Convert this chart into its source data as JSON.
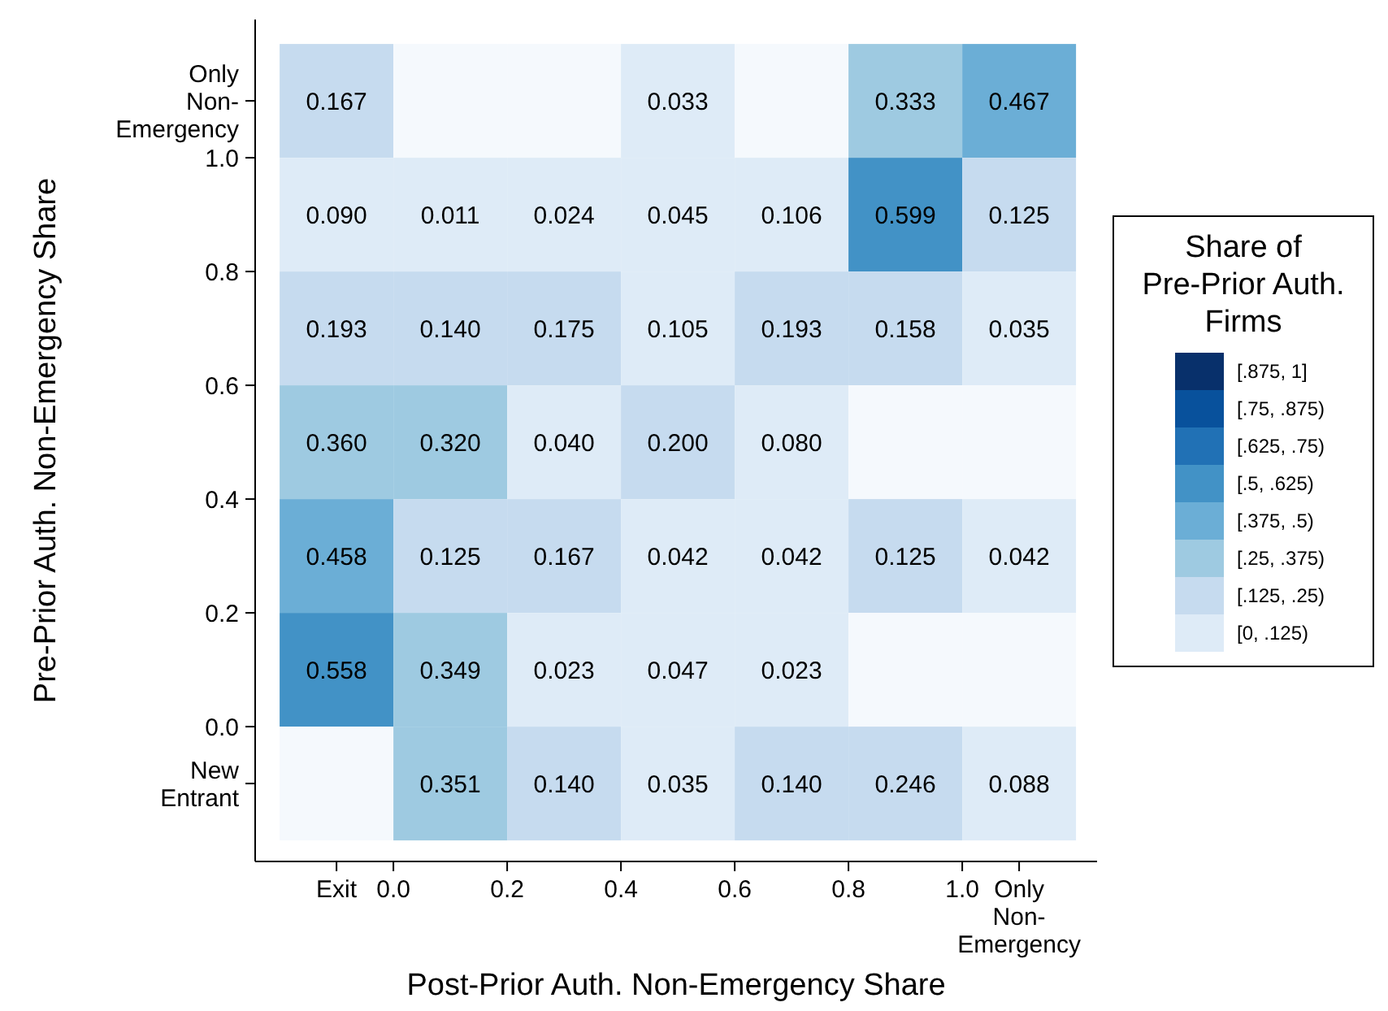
{
  "chart_data": {
    "type": "heatmap",
    "xlabel": "Post-Prior Auth. Non-Emergency Share",
    "ylabel": "Pre-Prior Auth. Non-Emergency Share",
    "legend_title": "Share of Pre-Prior Auth. Firms",
    "x": [
      -0.1,
      0.1,
      0.3,
      0.5,
      0.7,
      0.9,
      1.1
    ],
    "y": [
      1.1,
      0.9,
      0.7,
      0.5,
      0.3,
      0.1,
      -0.1
    ],
    "xlim": [
      -0.243,
      1.237
    ],
    "xticks": [
      {
        "value": -0.1,
        "label": "Exit"
      },
      {
        "value": 0,
        "label": "0.0"
      },
      0.2,
      0.4,
      0.6,
      0.8,
      {
        "value": 1,
        "label": "1.0"
      },
      {
        "value": 1.1,
        "label": "Only Non-Emergency"
      }
    ],
    "ylim": [
      -0.237,
      1.243
    ],
    "yticks": [
      {
        "value": -0.1,
        "label": "New Entrant"
      },
      {
        "value": 0,
        "label": "0.0"
      },
      0.2,
      0.4,
      0.6,
      0.8,
      {
        "value": 1,
        "label": "1.0"
      },
      {
        "value": 1.1,
        "label": "Only Non-Emergency"
      }
    ],
    "cells": [
      [
        0.167,
        null,
        null,
        0.033,
        null,
        0.333,
        0.467
      ],
      [
        0.09,
        0.011,
        0.024,
        0.045,
        0.106,
        0.599,
        0.125
      ],
      [
        0.193,
        0.14,
        0.175,
        0.105,
        0.193,
        0.158,
        0.035
      ],
      [
        0.36,
        0.32,
        0.04,
        0.2,
        0.08,
        null,
        null
      ],
      [
        0.458,
        0.125,
        0.167,
        0.042,
        0.042,
        0.125,
        0.042
      ],
      [
        0.558,
        0.349,
        0.023,
        0.047,
        0.023,
        null,
        null
      ],
      [
        null,
        0.351,
        0.14,
        0.035,
        0.14,
        0.246,
        0.088
      ]
    ],
    "cell_labels": [
      [
        "0.167",
        null,
        null,
        "0.033",
        null,
        "0.333",
        "0.467"
      ],
      [
        "0.090",
        "0.011",
        "0.024",
        "0.045",
        "0.106",
        "0.599",
        "0.125"
      ],
      [
        "0.193",
        "0.140",
        "0.175",
        "0.105",
        "0.193",
        "0.158",
        "0.035"
      ],
      [
        "0.360",
        "0.320",
        "0.040",
        "0.200",
        "0.080",
        null,
        null
      ],
      [
        "0.458",
        "0.125",
        "0.167",
        "0.042",
        "0.042",
        "0.125",
        "0.042"
      ],
      [
        "0.558",
        "0.349",
        "0.023",
        "0.047",
        "0.023",
        null,
        null
      ],
      [
        null,
        "0.351",
        "0.140",
        "0.035",
        "0.140",
        "0.246",
        "0.088"
      ]
    ],
    "clim": [
      0,
      1
    ],
    "cticks": [
      {
        "value": 0.0625,
        "label": "[0, .125)"
      },
      {
        "value": 0.1875,
        "label": "[.125, .25)"
      },
      {
        "value": 0.3125,
        "label": "[.25, .375)"
      },
      {
        "value": 0.4375,
        "label": "[.375, .5)"
      },
      {
        "value": 0.5625,
        "label": "[.5, .625)"
      },
      {
        "value": 0.6875,
        "label": "[.625, .75)"
      },
      {
        "value": 0.8125,
        "label": "[.75, .875)"
      },
      {
        "value": 0.9375,
        "label": "[.875, 1]"
      }
    ],
    "colors": [
      "#deebf7",
      "#c6dbef",
      "#9ecae1",
      "#6baed6",
      "#4292c6",
      "#2171b5",
      "#08519c",
      "#08306b"
    ]
  }
}
